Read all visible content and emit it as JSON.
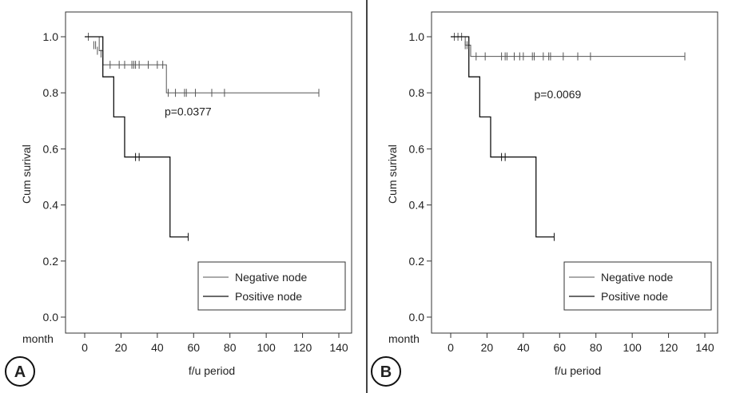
{
  "chart_data": [
    {
      "type": "line",
      "panel_label": "A",
      "xlabel": "f/u period",
      "ylabel": "Cum surival",
      "x_unit_label": "month",
      "xlim": [
        0,
        140
      ],
      "ylim": [
        0,
        1
      ],
      "xticks": [
        "0",
        "20",
        "40",
        "60",
        "80",
        "100",
        "120",
        "140"
      ],
      "yticks": [
        "0.0",
        "0.2",
        "0.4",
        "0.6",
        "0.8",
        "1.0"
      ],
      "annotation": {
        "text": "p=0.0377",
        "x": 44,
        "y": 0.72
      },
      "legend_position": "bottom-right",
      "series": [
        {
          "name": "Negative node",
          "color": "#555555",
          "steps": [
            [
              0,
              1.0
            ],
            [
              8,
              0.95
            ],
            [
              10,
              0.9
            ],
            [
              45,
              0.8
            ],
            [
              129,
              0.8
            ]
          ],
          "censored": [
            [
              2,
              1.0
            ],
            [
              5,
              0.97
            ],
            [
              6,
              0.97
            ],
            [
              7,
              0.95
            ],
            [
              9,
              0.94
            ],
            [
              14,
              0.9
            ],
            [
              19,
              0.9
            ],
            [
              22,
              0.9
            ],
            [
              26,
              0.9
            ],
            [
              27,
              0.9
            ],
            [
              28,
              0.9
            ],
            [
              30,
              0.9
            ],
            [
              35,
              0.9
            ],
            [
              40,
              0.9
            ],
            [
              43,
              0.9
            ],
            [
              46,
              0.8
            ],
            [
              50,
              0.8
            ],
            [
              55,
              0.8
            ],
            [
              56,
              0.8
            ],
            [
              61,
              0.8
            ],
            [
              70,
              0.8
            ],
            [
              77,
              0.8
            ],
            [
              129,
              0.8
            ]
          ]
        },
        {
          "name": "Positive node",
          "color": "#111111",
          "steps": [
            [
              0,
              1.0
            ],
            [
              10,
              0.857
            ],
            [
              16,
              0.714
            ],
            [
              22,
              0.571
            ],
            [
              47,
              0.286
            ],
            [
              57,
              0.286
            ]
          ],
          "censored": [
            [
              28,
              0.571
            ],
            [
              30,
              0.571
            ],
            [
              57,
              0.286
            ]
          ]
        }
      ]
    },
    {
      "type": "line",
      "panel_label": "B",
      "xlabel": "f/u period",
      "ylabel": "Cum surival",
      "x_unit_label": "month",
      "xlim": [
        0,
        140
      ],
      "ylim": [
        0,
        1
      ],
      "xticks": [
        "0",
        "20",
        "40",
        "60",
        "80",
        "100",
        "120",
        "140"
      ],
      "yticks": [
        "0.0",
        "0.2",
        "0.4",
        "0.6",
        "0.8",
        "1.0"
      ],
      "annotation": {
        "text": "p=0.0069",
        "x": 46,
        "y": 0.78
      },
      "legend_position": "bottom-right",
      "series": [
        {
          "name": "Negative node",
          "color": "#555555",
          "steps": [
            [
              0,
              1.0
            ],
            [
              8,
              0.97
            ],
            [
              11,
              0.93
            ],
            [
              129,
              0.93
            ]
          ],
          "censored": [
            [
              2,
              1.0
            ],
            [
              4,
              1.0
            ],
            [
              6,
              1.0
            ],
            [
              8,
              0.97
            ],
            [
              9,
              0.97
            ],
            [
              14,
              0.93
            ],
            [
              19,
              0.93
            ],
            [
              28,
              0.93
            ],
            [
              30,
              0.93
            ],
            [
              31,
              0.93
            ],
            [
              35,
              0.93
            ],
            [
              38,
              0.93
            ],
            [
              40,
              0.93
            ],
            [
              45,
              0.93
            ],
            [
              46,
              0.93
            ],
            [
              51,
              0.93
            ],
            [
              54,
              0.93
            ],
            [
              55,
              0.93
            ],
            [
              62,
              0.93
            ],
            [
              70,
              0.93
            ],
            [
              77,
              0.93
            ],
            [
              129,
              0.93
            ]
          ]
        },
        {
          "name": "Positive node",
          "color": "#111111",
          "steps": [
            [
              0,
              1.0
            ],
            [
              10,
              0.857
            ],
            [
              16,
              0.714
            ],
            [
              22,
              0.571
            ],
            [
              47,
              0.286
            ],
            [
              57,
              0.286
            ]
          ],
          "censored": [
            [
              28,
              0.571
            ],
            [
              30,
              0.571
            ],
            [
              57,
              0.286
            ]
          ]
        }
      ]
    }
  ]
}
